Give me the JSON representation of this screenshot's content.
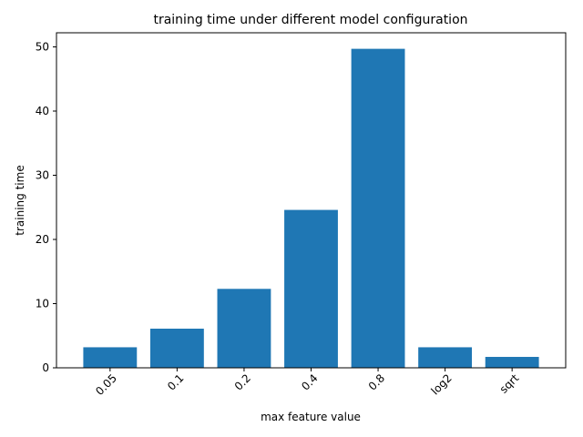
{
  "chart_data": {
    "type": "bar",
    "title": "training time under different model configuration",
    "xlabel": "max feature value",
    "ylabel": "training time",
    "categories": [
      "0.05",
      "0.1",
      "0.2",
      "0.4",
      "0.8",
      "log2",
      "sqrt"
    ],
    "values": [
      3.2,
      6.1,
      12.3,
      24.6,
      49.7,
      3.2,
      1.7
    ],
    "ylim": [
      0,
      52.2
    ],
    "yticks": [
      0,
      10,
      20,
      30,
      40,
      50
    ],
    "grid": false,
    "bar_color": "#1f77b4"
  }
}
